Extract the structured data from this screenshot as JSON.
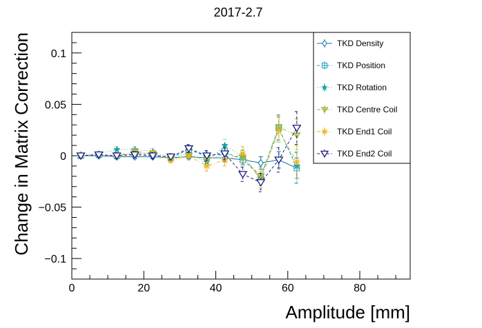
{
  "chart_data": {
    "type": "scatter",
    "title": "2017-2.7",
    "xlabel": "Amplitude [mm]",
    "ylabel": "Change in Matrix Correction",
    "xlim": [
      0,
      94
    ],
    "ylim": [
      -0.12,
      0.12
    ],
    "x_ticks": [
      "0",
      "20",
      "40",
      "60",
      "80"
    ],
    "y_ticks": [
      "−0.1",
      "−0.05",
      "0",
      "0.05",
      "0.1"
    ],
    "legend_position": "top-right",
    "grid": false,
    "x": [
      2.5,
      7.5,
      12.5,
      17.5,
      22.5,
      27.5,
      32.5,
      37.5,
      42.5,
      47.5,
      52.5,
      57.5,
      62.5
    ],
    "series": [
      {
        "name": "TKD Density",
        "color": "#0b6fa8",
        "marker": "diamond",
        "line": "solid",
        "values": [
          0.0,
          0.0,
          -0.001,
          -0.001,
          -0.001,
          -0.002,
          -0.001,
          -0.002,
          -0.002,
          -0.004,
          -0.007,
          -0.004,
          -0.012
        ],
        "errors": [
          0.002,
          0.002,
          0.002,
          0.002,
          0.002,
          0.002,
          0.002,
          0.003,
          0.004,
          0.005,
          0.006,
          0.008,
          0.01
        ]
      },
      {
        "name": "TKD Position",
        "color": "#1c9dc0",
        "marker": "square",
        "line": "dashed",
        "values": [
          0.0,
          0.001,
          0.0,
          0.002,
          0.001,
          -0.002,
          0.006,
          -0.001,
          0.004,
          -0.004,
          -0.02,
          0.027,
          -0.012
        ],
        "errors": [
          0.002,
          0.002,
          0.002,
          0.003,
          0.003,
          0.003,
          0.004,
          0.005,
          0.006,
          0.007,
          0.009,
          0.012,
          0.015
        ]
      },
      {
        "name": "TKD Rotation",
        "color": "#17a5a5",
        "marker": "star",
        "line": "dotted",
        "values": [
          0.001,
          0.002,
          0.006,
          0.006,
          0.004,
          -0.002,
          0.002,
          -0.006,
          0.01,
          -0.001,
          -0.022,
          0.026,
          -0.01
        ],
        "errors": [
          0.002,
          0.002,
          0.003,
          0.003,
          0.003,
          0.003,
          0.004,
          0.005,
          0.006,
          0.007,
          0.009,
          0.012,
          0.016
        ]
      },
      {
        "name": "TKD Centre Coil",
        "color": "#9ab53a",
        "marker": "triangle-down",
        "line": "dashdot",
        "values": [
          0.0,
          0.001,
          0.0,
          0.004,
          0.002,
          -0.003,
          0.0,
          -0.004,
          0.002,
          -0.002,
          -0.02,
          0.028,
          0.02
        ],
        "errors": [
          0.002,
          0.002,
          0.003,
          0.003,
          0.003,
          0.003,
          0.004,
          0.005,
          0.006,
          0.007,
          0.009,
          0.012,
          0.016
        ]
      },
      {
        "name": "TKD End1 Coil",
        "color": "#f0b21a",
        "marker": "asterisk",
        "line": "dashdot",
        "values": [
          0.0,
          0.001,
          0.0,
          0.002,
          0.002,
          -0.004,
          0.0,
          -0.01,
          -0.004,
          0.002,
          -0.024,
          0.025,
          -0.006
        ],
        "errors": [
          0.002,
          0.002,
          0.003,
          0.003,
          0.003,
          0.003,
          0.004,
          0.005,
          0.006,
          0.007,
          0.009,
          0.012,
          0.016
        ]
      },
      {
        "name": "TKD End2 Coil",
        "color": "#1a1a7a",
        "marker": "triangle-down-open",
        "line": "dashed",
        "values": [
          0.0,
          0.001,
          0.0,
          0.001,
          0.0,
          -0.001,
          0.007,
          0.0,
          0.002,
          -0.018,
          -0.026,
          -0.004,
          0.027
        ],
        "errors": [
          0.002,
          0.002,
          0.003,
          0.003,
          0.003,
          0.003,
          0.004,
          0.005,
          0.006,
          0.007,
          0.009,
          0.012,
          0.016
        ]
      }
    ]
  }
}
